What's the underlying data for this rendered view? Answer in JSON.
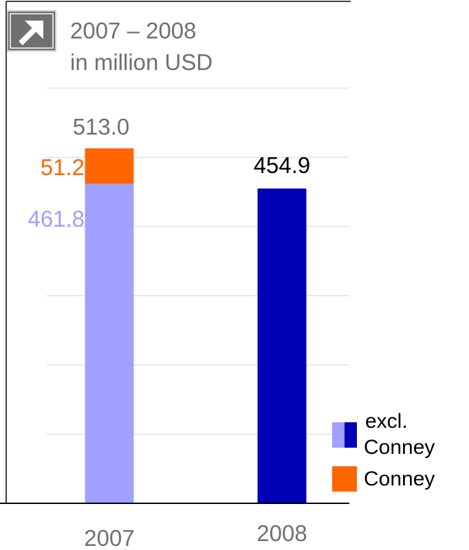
{
  "header": {
    "line1": "2007 – 2008",
    "line2": "in million USD",
    "icon": "arrow-up-right-icon"
  },
  "chart_data": {
    "type": "bar",
    "stacked": true,
    "categories": [
      "2007",
      "2008"
    ],
    "series": [
      {
        "name": "excl. Conney",
        "values": [
          461.8,
          454.9
        ],
        "colors": [
          "#a0a0ff",
          "#0000b4"
        ]
      },
      {
        "name": "Conney",
        "values": [
          51.2,
          0
        ],
        "colors": [
          "#ff6600",
          "#ff6600"
        ]
      }
    ],
    "totals": [
      513.0,
      454.9
    ],
    "segment_labels": {
      "2007": {
        "excl": "461.8",
        "conney": "51.2",
        "total": "513.0"
      },
      "2008": {
        "total": "454.9"
      }
    },
    "ylim": [
      0,
      600
    ],
    "grid": true,
    "legend": {
      "position": "bottom-right",
      "items": [
        {
          "label_lines": [
            "excl.",
            "Conney"
          ],
          "colors": [
            "#a0a0ff",
            "#0000b4"
          ]
        },
        {
          "label_lines": [
            "Conney"
          ],
          "colors": [
            "#ff6600"
          ]
        }
      ]
    }
  },
  "colors": {
    "label_gray": "#707070",
    "label_light": "#a0a0ff",
    "label_orange": "#ff6600",
    "label_dark": "#000000",
    "grid": "#dddddd",
    "icon_bg": "#707070"
  }
}
